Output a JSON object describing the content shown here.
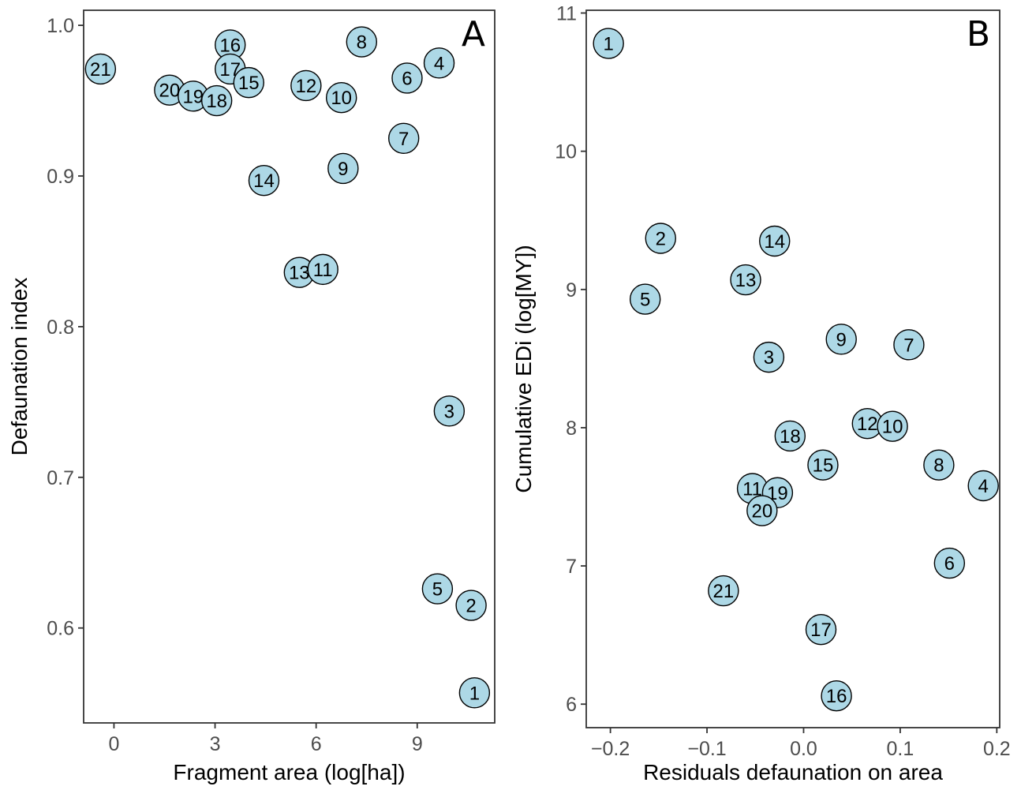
{
  "point_color": "#add8e6",
  "chart_data": [
    {
      "type": "scatter",
      "panel_letter": "A",
      "xlabel": "Fragment area (log[ha])",
      "ylabel": "Defaunation index",
      "xlim": [
        -0.9,
        11.3
      ],
      "ylim": [
        0.537,
        1.01
      ],
      "xticks": [
        0,
        3,
        6,
        9
      ],
      "xtick_labels": [
        "0",
        "3",
        "6",
        "9"
      ],
      "yticks": [
        0.6,
        0.7,
        0.8,
        0.9,
        1.0
      ],
      "ytick_labels": [
        "0.6",
        "0.7",
        "0.8",
        "0.9",
        "1.0"
      ],
      "points": [
        {
          "label": "21",
          "x": -0.4,
          "y": 0.971
        },
        {
          "label": "20",
          "x": 1.65,
          "y": 0.957
        },
        {
          "label": "19",
          "x": 2.35,
          "y": 0.953
        },
        {
          "label": "18",
          "x": 3.05,
          "y": 0.95
        },
        {
          "label": "16",
          "x": 3.45,
          "y": 0.987
        },
        {
          "label": "17",
          "x": 3.45,
          "y": 0.971
        },
        {
          "label": "15",
          "x": 4.0,
          "y": 0.962
        },
        {
          "label": "14",
          "x": 4.45,
          "y": 0.897
        },
        {
          "label": "13",
          "x": 5.5,
          "y": 0.836
        },
        {
          "label": "11",
          "x": 6.2,
          "y": 0.838
        },
        {
          "label": "12",
          "x": 5.7,
          "y": 0.96
        },
        {
          "label": "10",
          "x": 6.75,
          "y": 0.952
        },
        {
          "label": "9",
          "x": 6.8,
          "y": 0.905
        },
        {
          "label": "8",
          "x": 7.35,
          "y": 0.989
        },
        {
          "label": "6",
          "x": 8.7,
          "y": 0.965
        },
        {
          "label": "7",
          "x": 8.6,
          "y": 0.925
        },
        {
          "label": "4",
          "x": 9.65,
          "y": 0.975
        },
        {
          "label": "3",
          "x": 9.95,
          "y": 0.744
        },
        {
          "label": "5",
          "x": 9.6,
          "y": 0.626
        },
        {
          "label": "2",
          "x": 10.6,
          "y": 0.615
        },
        {
          "label": "1",
          "x": 10.7,
          "y": 0.557
        }
      ]
    },
    {
      "type": "scatter",
      "panel_letter": "B",
      "xlabel": "Residuals defaunation on area",
      "ylabel": "Cumulative EDi (log[MY])",
      "xlim": [
        -0.225,
        0.203
      ],
      "ylim": [
        5.83,
        11.02
      ],
      "xticks": [
        -0.2,
        -0.1,
        0.0,
        0.1,
        0.2
      ],
      "xtick_labels": [
        "−0.2",
        "−0.1",
        "0.0",
        "0.1",
        "0.2"
      ],
      "yticks": [
        6,
        7,
        8,
        9,
        10,
        11
      ],
      "ytick_labels": [
        "6",
        "7",
        "8",
        "9",
        "10",
        "11"
      ],
      "points": [
        {
          "label": "1",
          "x": -0.202,
          "y": 10.78
        },
        {
          "label": "2",
          "x": -0.148,
          "y": 9.37
        },
        {
          "label": "5",
          "x": -0.164,
          "y": 8.93
        },
        {
          "label": "14",
          "x": -0.03,
          "y": 9.35
        },
        {
          "label": "13",
          "x": -0.06,
          "y": 9.07
        },
        {
          "label": "3",
          "x": -0.036,
          "y": 8.51
        },
        {
          "label": "9",
          "x": 0.039,
          "y": 8.64
        },
        {
          "label": "7",
          "x": 0.109,
          "y": 8.6
        },
        {
          "label": "12",
          "x": 0.066,
          "y": 8.03
        },
        {
          "label": "10",
          "x": 0.092,
          "y": 8.01
        },
        {
          "label": "18",
          "x": -0.014,
          "y": 7.94
        },
        {
          "label": "15",
          "x": 0.02,
          "y": 7.73
        },
        {
          "label": "8",
          "x": 0.14,
          "y": 7.73
        },
        {
          "label": "4",
          "x": 0.186,
          "y": 7.58
        },
        {
          "label": "11",
          "x": -0.053,
          "y": 7.56
        },
        {
          "label": "19",
          "x": -0.027,
          "y": 7.53
        },
        {
          "label": "20",
          "x": -0.043,
          "y": 7.4
        },
        {
          "label": "6",
          "x": 0.151,
          "y": 7.02
        },
        {
          "label": "21",
          "x": -0.083,
          "y": 6.82
        },
        {
          "label": "17",
          "x": 0.018,
          "y": 6.54
        },
        {
          "label": "16",
          "x": 0.034,
          "y": 6.06
        }
      ]
    }
  ]
}
